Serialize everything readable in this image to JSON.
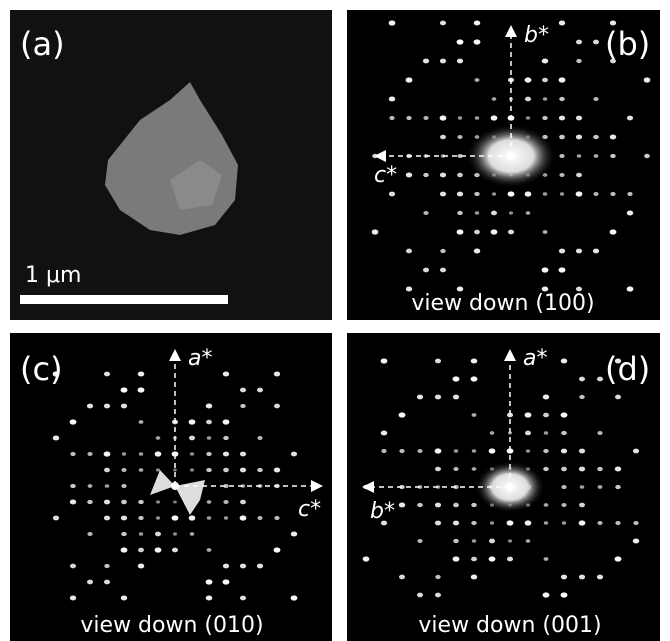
{
  "panels": [
    {
      "label": "(a)",
      "scale_bar": "1 μm"
    },
    {
      "label": "(b)",
      "axes": [
        "b*",
        "c*"
      ],
      "caption": "view down (100)"
    },
    {
      "label": "(c)",
      "axes": [
        "a*",
        "c*"
      ],
      "caption": "view down (010)"
    },
    {
      "label": "(d)",
      "axes": [
        "a*",
        "b*"
      ],
      "caption": "view down (001)"
    }
  ]
}
